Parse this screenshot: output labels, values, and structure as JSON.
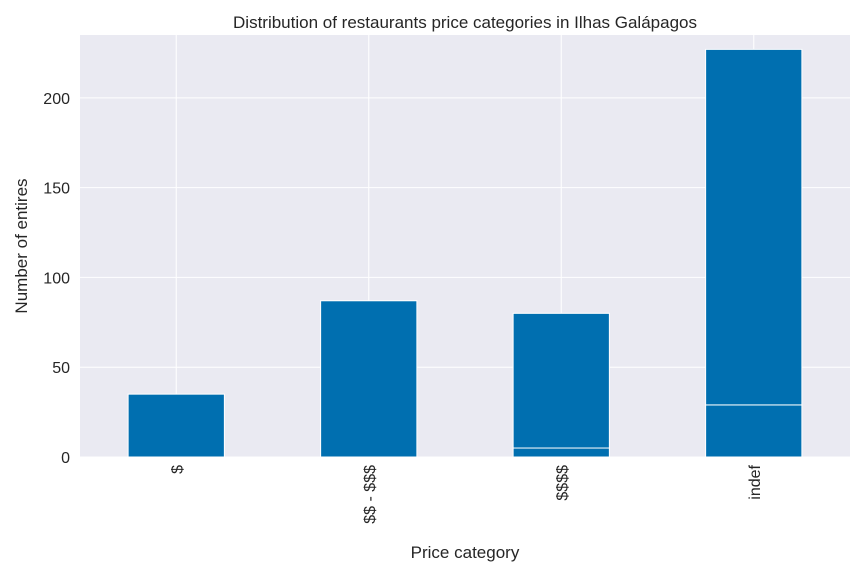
{
  "chart_data": {
    "type": "bar",
    "stacked": true,
    "title": "Distribution of restaurants price categories in Ilhas Galápagos",
    "xlabel": "Price category",
    "ylabel": "Number of entires",
    "categories": [
      "$",
      "$$ - $$$",
      "$$$$",
      "indef"
    ],
    "series": [
      {
        "values": [
          0,
          0,
          5,
          29
        ]
      },
      {
        "values": [
          35,
          87,
          75,
          198
        ]
      }
    ],
    "totals": [
      35,
      87,
      80,
      227
    ],
    "ylim": [
      0,
      235
    ],
    "yticks": [
      0,
      50,
      100,
      150,
      200
    ],
    "grid": true,
    "legend": "none",
    "colors": {
      "bar": "#006fb0",
      "background": "#eaeaf2",
      "grid": "#ffffff"
    }
  }
}
